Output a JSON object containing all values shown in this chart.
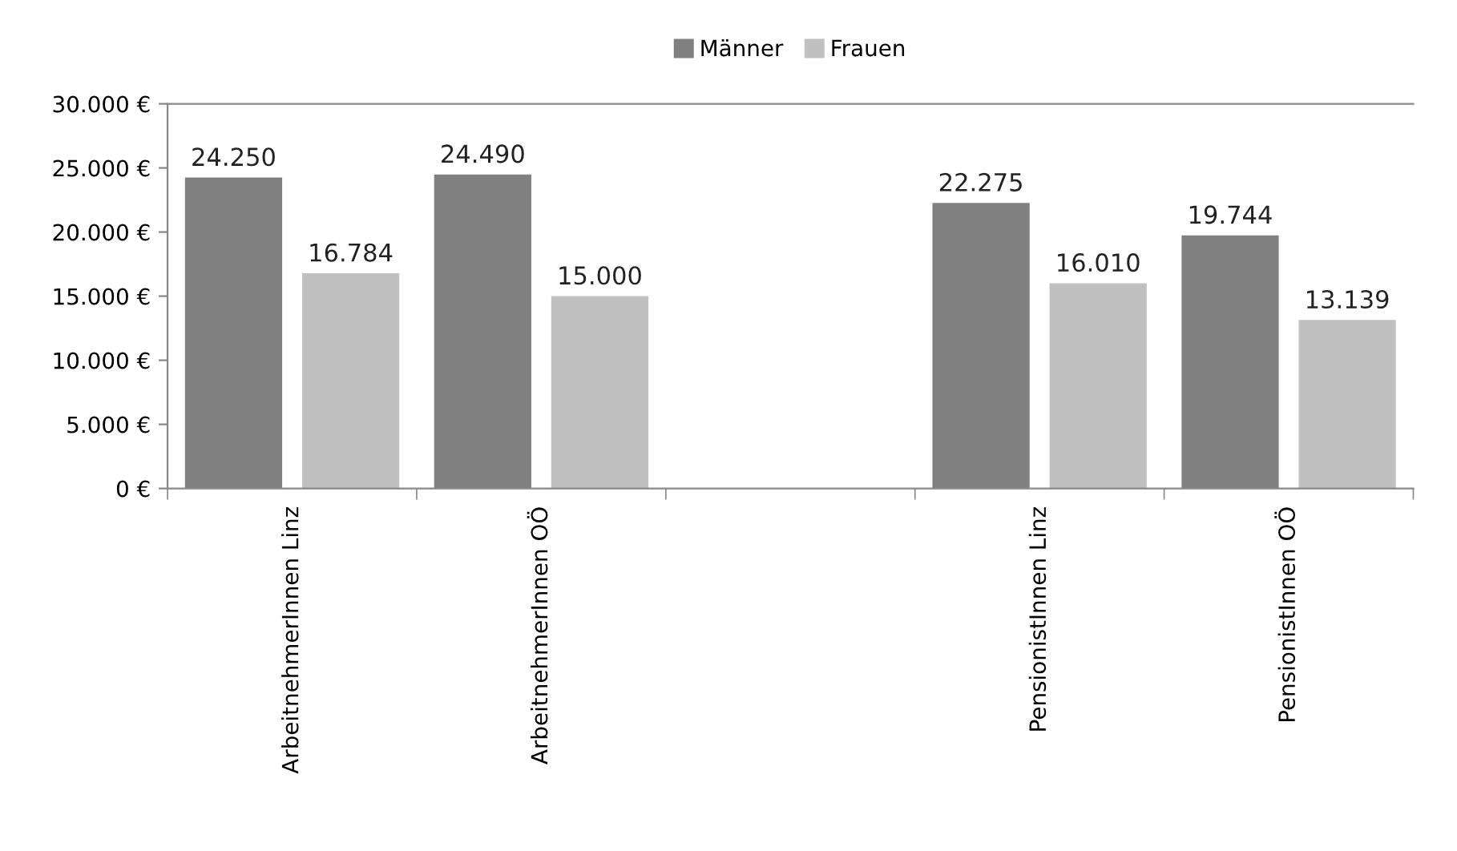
{
  "chart_data": {
    "type": "bar",
    "categories": [
      "ArbeitnehmerInnen Linz",
      "ArbeitnehmerInnen OÖ",
      null,
      "PensionistInnen Linz",
      "PensionistInnen OÖ"
    ],
    "series": [
      {
        "name": "Männer",
        "color": "#808080",
        "values": [
          24250,
          24490,
          null,
          22275,
          19744
        ],
        "value_labels": [
          "24.250",
          "24.490",
          null,
          "22.275",
          "19.744"
        ]
      },
      {
        "name": "Frauen",
        "color": "#c0c0c0",
        "values": [
          16784,
          15000,
          null,
          16010,
          13139
        ],
        "value_labels": [
          "16.784",
          "15.000",
          null,
          "16.010",
          "13.139"
        ]
      }
    ],
    "ylim": [
      0,
      30000
    ],
    "yticks": [
      {
        "value": 0,
        "label": "0 €"
      },
      {
        "value": 5000,
        "label": "5.000 €"
      },
      {
        "value": 10000,
        "label": "10.000 €"
      },
      {
        "value": 15000,
        "label": "15.000 €"
      },
      {
        "value": 20000,
        "label": "20.000 €"
      },
      {
        "value": 25000,
        "label": "25.000 €"
      },
      {
        "value": 30000,
        "label": "30.000 €"
      }
    ],
    "grid": false,
    "legend": "top"
  }
}
